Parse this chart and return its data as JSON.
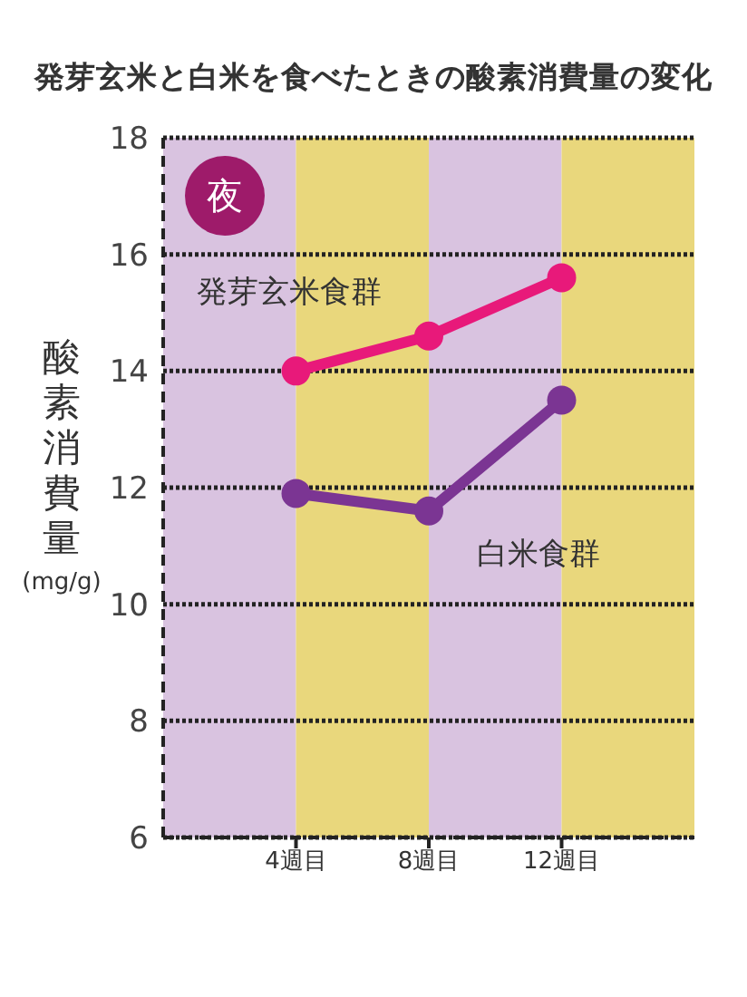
{
  "chart_data": {
    "type": "line",
    "title": "発芽玄米と白米を食べたときの酸素消費量の変化",
    "ylabel": "酸素消費量 (mg/g)",
    "annotations": [
      "夜"
    ],
    "x": [
      4,
      8,
      12
    ],
    "series": [
      {
        "name": "発芽玄米食群",
        "color": "#e8197a",
        "values": [
          14.0,
          14.6,
          15.6
        ]
      },
      {
        "name": "白米食群",
        "color": "#7b3593",
        "values": [
          11.9,
          11.6,
          13.5
        ]
      }
    ],
    "xlim": [
      0,
      16
    ],
    "xticks": [
      {
        "value": 4,
        "label": "4週目"
      },
      {
        "value": 8,
        "label": "8週目"
      },
      {
        "value": 12,
        "label": "12週目"
      }
    ],
    "ylim": [
      6,
      18
    ],
    "yticks": [
      6,
      8,
      10,
      12,
      14,
      16,
      18
    ],
    "grid": "y",
    "marker": "circle",
    "line_style": "solid",
    "legend": false,
    "bands": [
      {
        "axis": "x",
        "from": 0,
        "to": 4,
        "color": "#d9c3e0"
      },
      {
        "axis": "x",
        "from": 4,
        "to": 8,
        "color": "#e9d77c"
      },
      {
        "axis": "x",
        "from": 8,
        "to": 12,
        "color": "#d9c3e0"
      },
      {
        "axis": "x",
        "from": 12,
        "to": 16,
        "color": "#e9d77c"
      }
    ]
  }
}
